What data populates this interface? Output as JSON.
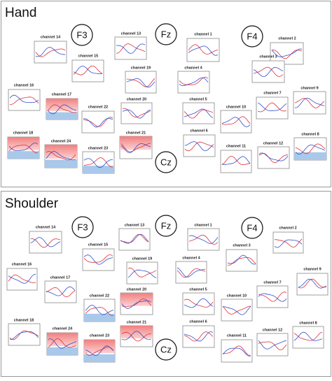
{
  "sections": [
    {
      "title": "Hand",
      "electrodes": [
        "F3",
        "Fz",
        "F4",
        "Cz"
      ],
      "panels": [
        "channel 14",
        "channel 13",
        "channel 1",
        "channel 2",
        "channel 15",
        "channel 3",
        "channel 19",
        "channel 4",
        "channel 16",
        "channel 17",
        "channel 20",
        "channel 5",
        "channel 7",
        "channel 9",
        "channel 22",
        "channel 10",
        "channel 18",
        "channel 24",
        "channel 21",
        "channel 6",
        "channel 11",
        "channel 12",
        "channel 8",
        "channel 23"
      ]
    },
    {
      "title": "Shoulder",
      "electrodes": [
        "F3",
        "Fz",
        "F4",
        "Cz"
      ],
      "panels": [
        "channel 14",
        "channel 13",
        "channel 1",
        "channel 2",
        "channel 15",
        "channel 3",
        "channel 16",
        "channel 19",
        "channel 4",
        "channel 9",
        "channel 17",
        "channel 7",
        "channel 20",
        "channel 22",
        "channel 5",
        "channel 10",
        "channel 18",
        "channel 24",
        "channel 21",
        "channel 6",
        "channel 11",
        "channel 12",
        "channel 8",
        "channel 23"
      ]
    }
  ]
}
